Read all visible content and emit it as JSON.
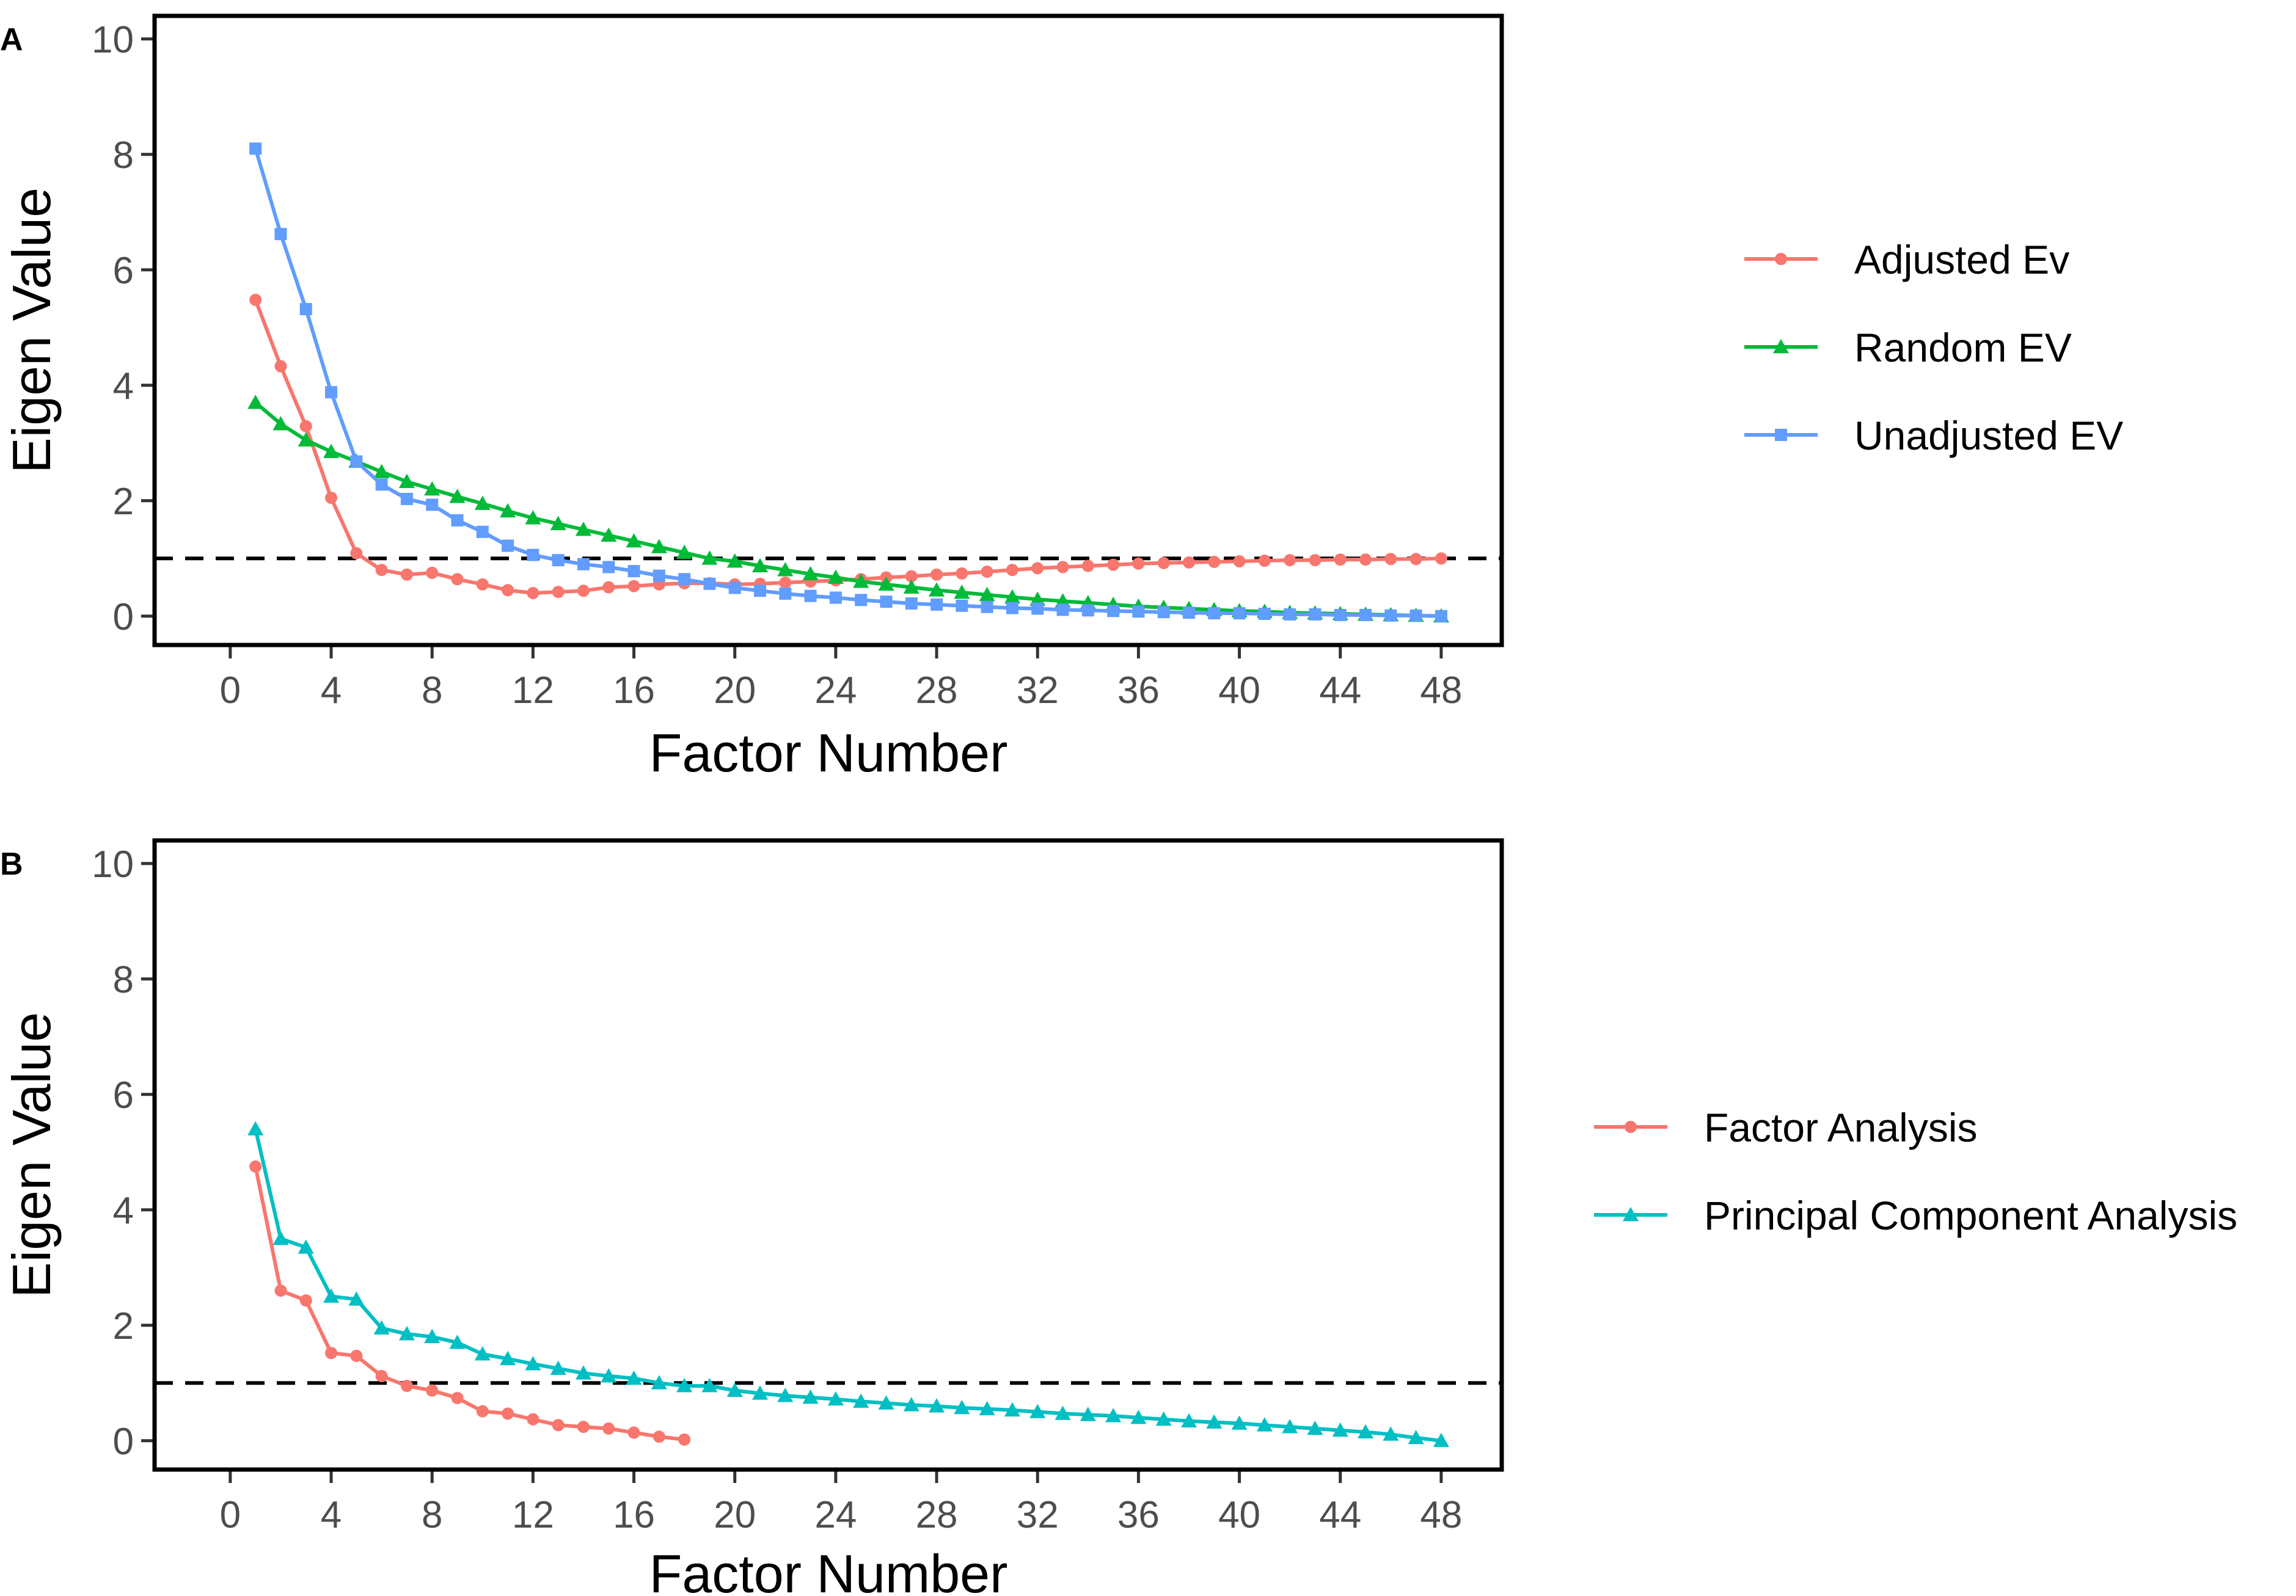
{
  "chart_data": [
    {
      "type": "line",
      "panel_label": "A",
      "title": "",
      "xlabel": "Factor Number",
      "ylabel": "Eigen Value",
      "xlim": [
        -3,
        50.4
      ],
      "ylim": [
        -0.5,
        10.4
      ],
      "x_ticks": [
        0,
        4,
        8,
        12,
        16,
        20,
        24,
        28,
        32,
        36,
        40,
        44,
        48
      ],
      "y_ticks": [
        0,
        2,
        4,
        6,
        8,
        10
      ],
      "reference_line": 1,
      "grid": false,
      "legend_position": "right",
      "x": [
        1,
        2,
        3,
        4,
        5,
        6,
        7,
        8,
        9,
        10,
        11,
        12,
        13,
        14,
        15,
        16,
        17,
        18,
        19,
        20,
        21,
        22,
        23,
        24,
        25,
        26,
        27,
        28,
        29,
        30,
        31,
        32,
        33,
        34,
        35,
        36,
        37,
        38,
        39,
        40,
        41,
        42,
        43,
        44,
        45,
        46,
        47,
        48
      ],
      "series": [
        {
          "name": "Adjusted Ev",
          "color": "#f8766d",
          "marker": "circle",
          "values": [
            5.48,
            4.33,
            3.29,
            2.05,
            1.09,
            0.8,
            0.72,
            0.75,
            0.64,
            0.55,
            0.45,
            0.4,
            0.42,
            0.44,
            0.5,
            0.52,
            0.55,
            0.57,
            0.57,
            0.55,
            0.56,
            0.58,
            0.6,
            0.62,
            0.64,
            0.67,
            0.69,
            0.72,
            0.74,
            0.77,
            0.8,
            0.83,
            0.85,
            0.87,
            0.89,
            0.91,
            0.92,
            0.93,
            0.94,
            0.95,
            0.96,
            0.97,
            0.97,
            0.98,
            0.98,
            0.99,
            0.99,
            1.0
          ]
        },
        {
          "name": "Random EV",
          "color": "#00ba38",
          "marker": "triangle",
          "values": [
            3.7,
            3.33,
            3.05,
            2.85,
            2.68,
            2.5,
            2.33,
            2.2,
            2.07,
            1.95,
            1.82,
            1.7,
            1.6,
            1.5,
            1.4,
            1.3,
            1.2,
            1.1,
            1.0,
            0.95,
            0.87,
            0.8,
            0.73,
            0.67,
            0.6,
            0.55,
            0.5,
            0.45,
            0.41,
            0.37,
            0.33,
            0.29,
            0.26,
            0.23,
            0.2,
            0.17,
            0.15,
            0.13,
            0.11,
            0.09,
            0.08,
            0.06,
            0.05,
            0.04,
            0.03,
            0.02,
            0.01,
            0.0
          ]
        },
        {
          "name": "Unadjusted EV",
          "color": "#619cff",
          "marker": "square",
          "values": [
            8.1,
            6.62,
            5.32,
            3.88,
            2.68,
            2.28,
            2.03,
            1.93,
            1.66,
            1.46,
            1.22,
            1.06,
            0.97,
            0.9,
            0.85,
            0.78,
            0.7,
            0.64,
            0.56,
            0.49,
            0.44,
            0.39,
            0.35,
            0.32,
            0.28,
            0.25,
            0.22,
            0.2,
            0.18,
            0.16,
            0.14,
            0.13,
            0.11,
            0.1,
            0.09,
            0.08,
            0.07,
            0.06,
            0.05,
            0.05,
            0.04,
            0.03,
            0.03,
            0.02,
            0.02,
            0.01,
            0.01,
            0.0
          ]
        }
      ]
    },
    {
      "type": "line",
      "panel_label": "B",
      "title": "",
      "xlabel": "Factor Number",
      "ylabel": "Eigen Value",
      "xlim": [
        -3,
        50.4
      ],
      "ylim": [
        -0.5,
        10.4
      ],
      "x_ticks": [
        0,
        4,
        8,
        12,
        16,
        20,
        24,
        28,
        32,
        36,
        40,
        44,
        48
      ],
      "y_ticks": [
        0,
        2,
        4,
        6,
        8,
        10
      ],
      "reference_line": 1,
      "grid": false,
      "legend_position": "right",
      "series": [
        {
          "name": "Factor Analysis",
          "color": "#f8766d",
          "marker": "circle",
          "x": [
            1,
            2,
            3,
            4,
            5,
            6,
            7,
            8,
            9,
            10,
            11,
            12,
            13,
            14,
            15,
            16,
            17,
            18
          ],
          "values": [
            4.75,
            2.6,
            2.43,
            1.52,
            1.47,
            1.12,
            0.95,
            0.87,
            0.74,
            0.51,
            0.47,
            0.37,
            0.27,
            0.24,
            0.21,
            0.14,
            0.07,
            0.02
          ]
        },
        {
          "name": "Principal Component Analysis",
          "color": "#00bfc4",
          "marker": "triangle",
          "x": [
            1,
            2,
            3,
            4,
            5,
            6,
            7,
            8,
            9,
            10,
            11,
            12,
            13,
            14,
            15,
            16,
            17,
            18,
            19,
            20,
            21,
            22,
            23,
            24,
            25,
            26,
            27,
            28,
            29,
            30,
            31,
            32,
            33,
            34,
            35,
            36,
            37,
            38,
            39,
            40,
            41,
            42,
            43,
            44,
            45,
            46,
            47,
            48
          ],
          "values": [
            5.4,
            3.5,
            3.35,
            2.5,
            2.45,
            1.95,
            1.85,
            1.8,
            1.7,
            1.5,
            1.42,
            1.33,
            1.25,
            1.17,
            1.12,
            1.08,
            1.0,
            0.95,
            0.95,
            0.87,
            0.82,
            0.78,
            0.75,
            0.72,
            0.68,
            0.65,
            0.62,
            0.6,
            0.57,
            0.55,
            0.53,
            0.5,
            0.47,
            0.45,
            0.43,
            0.4,
            0.37,
            0.34,
            0.32,
            0.3,
            0.27,
            0.24,
            0.21,
            0.18,
            0.15,
            0.11,
            0.05,
            0.0
          ]
        }
      ]
    }
  ]
}
